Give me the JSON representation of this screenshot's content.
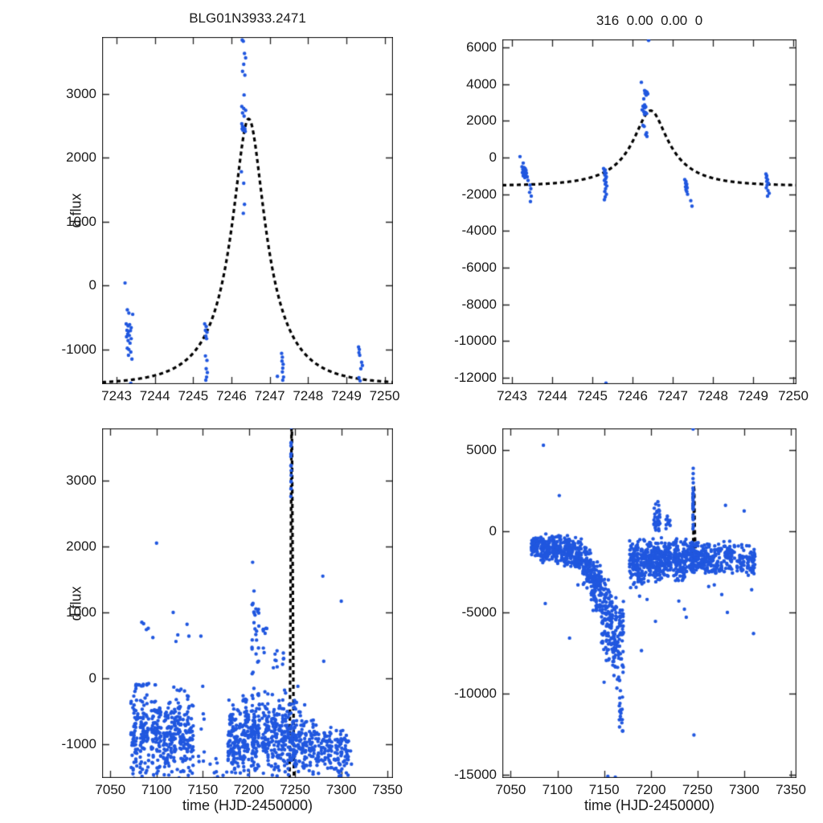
{
  "figure": {
    "background": "#ffffff",
    "point_color": "#2057df",
    "curve_color": "#000000",
    "axis_color": "#262626",
    "marker_radius": 2.2,
    "curve_dash": [
      5,
      4
    ],
    "curve_width": 3.2
  },
  "chart_data": [
    {
      "name": "top-left",
      "type": "scatter",
      "title": "BLG01N3933.2471",
      "ylabel": "d flux",
      "xlim": [
        7242.62,
        7250.22
      ],
      "ylim": [
        -1542,
        3887
      ],
      "xticks": [
        7243,
        7244,
        7245,
        7246,
        7247,
        7248,
        7249,
        7250
      ],
      "yticks": [
        -1000,
        0,
        1000,
        2000,
        3000
      ],
      "model_curve": {
        "type": "paczynski",
        "t0": 7246.45,
        "u0": 0.3,
        "tE": 1.4,
        "fs": 1700,
        "fb": -1550,
        "trange": [
          7242.62,
          7250.22
        ]
      },
      "points": [
        [
          7243.22,
          40
        ],
        [
          7243.28,
          -380
        ],
        [
          7243.32,
          -430
        ],
        [
          7243.42,
          -450
        ],
        [
          7243.25,
          -600
        ],
        [
          7243.3,
          -630
        ],
        [
          7243.34,
          -610
        ],
        [
          7243.38,
          -660
        ],
        [
          7243.27,
          -700
        ],
        [
          7243.31,
          -720
        ],
        [
          7243.36,
          -705
        ],
        [
          7243.29,
          -760
        ],
        [
          7243.33,
          -780
        ],
        [
          7243.26,
          -800
        ],
        [
          7243.38,
          -830
        ],
        [
          7243.3,
          -860
        ],
        [
          7243.35,
          -900
        ],
        [
          7243.28,
          -980
        ],
        [
          7243.32,
          -1000
        ],
        [
          7243.37,
          -1040
        ],
        [
          7243.31,
          -1090
        ],
        [
          7243.4,
          -1150
        ],
        [
          7243.37,
          -1530
        ],
        [
          7245.3,
          -600
        ],
        [
          7245.34,
          -640
        ],
        [
          7245.32,
          -700
        ],
        [
          7245.36,
          -730
        ],
        [
          7245.33,
          -790
        ],
        [
          7245.35,
          -830
        ],
        [
          7245.32,
          -1100
        ],
        [
          7245.36,
          -1170
        ],
        [
          7245.34,
          -1300
        ],
        [
          7245.37,
          -1360
        ],
        [
          7245.35,
          -1430
        ],
        [
          7245.33,
          -1480
        ],
        [
          7246.28,
          3840
        ],
        [
          7246.31,
          3820
        ],
        [
          7246.34,
          3630
        ],
        [
          7246.37,
          3560
        ],
        [
          7246.32,
          3460
        ],
        [
          7246.29,
          3350
        ],
        [
          7246.35,
          3290
        ],
        [
          7246.33,
          2980
        ],
        [
          7246.27,
          2800
        ],
        [
          7246.32,
          2770
        ],
        [
          7246.37,
          2740
        ],
        [
          7246.29,
          2700
        ],
        [
          7246.33,
          2650
        ],
        [
          7246.27,
          2530
        ],
        [
          7246.29,
          2490
        ],
        [
          7246.32,
          2470
        ],
        [
          7246.35,
          2450
        ],
        [
          7246.3,
          2430
        ],
        [
          7246.36,
          2410
        ],
        [
          7246.28,
          2450
        ],
        [
          7246.26,
          1780
        ],
        [
          7246.32,
          1600
        ],
        [
          7246.34,
          1270
        ],
        [
          7246.31,
          1130
        ],
        [
          7247.31,
          -1060
        ],
        [
          7247.33,
          -1120
        ],
        [
          7247.32,
          -1180
        ],
        [
          7247.35,
          -1230
        ],
        [
          7247.34,
          -1290
        ],
        [
          7247.33,
          -1350
        ],
        [
          7247.36,
          -1430
        ],
        [
          7247.34,
          -1480
        ],
        [
          7247.2,
          -1420
        ],
        [
          7249.32,
          -960
        ],
        [
          7249.34,
          -1000
        ],
        [
          7249.33,
          -1050
        ],
        [
          7249.35,
          -1090
        ],
        [
          7249.4,
          -1200
        ],
        [
          7249.42,
          -1250
        ],
        [
          7249.38,
          -1300
        ],
        [
          7249.33,
          -1440
        ],
        [
          7249.36,
          -1490
        ]
      ]
    },
    {
      "name": "top-right",
      "type": "scatter",
      "title": "316  0.00  0.00  0",
      "xlim": [
        7242.76,
        7250.08
      ],
      "ylim": [
        -12355,
        6440
      ],
      "xticks": [
        7243,
        7244,
        7245,
        7246,
        7247,
        7248,
        7249,
        7250
      ],
      "yticks": [
        -12000,
        -10000,
        -8000,
        -6000,
        -4000,
        -2000,
        0,
        2000,
        4000,
        6000
      ],
      "model_curve": {
        "type": "paczynski",
        "t0": 7246.45,
        "u0": 0.3,
        "tE": 1.4,
        "fs": 1680,
        "fb": -1550,
        "trange": [
          7242.76,
          7250.08
        ]
      },
      "points": [
        [
          7243.2,
          50
        ],
        [
          7243.28,
          -300
        ],
        [
          7243.25,
          -500
        ],
        [
          7243.3,
          -550
        ],
        [
          7243.33,
          -600
        ],
        [
          7243.27,
          -650
        ],
        [
          7243.31,
          -680
        ],
        [
          7243.35,
          -700
        ],
        [
          7243.29,
          -750
        ],
        [
          7243.33,
          -780
        ],
        [
          7243.26,
          -820
        ],
        [
          7243.36,
          -850
        ],
        [
          7243.3,
          -900
        ],
        [
          7243.34,
          -950
        ],
        [
          7243.28,
          -1000
        ],
        [
          7243.38,
          -1050
        ],
        [
          7243.32,
          -1100
        ],
        [
          7243.4,
          -1250
        ],
        [
          7243.45,
          -1500
        ],
        [
          7243.47,
          -1700
        ],
        [
          7243.44,
          -1900
        ],
        [
          7243.48,
          -2100
        ],
        [
          7243.46,
          -2400
        ],
        [
          7245.28,
          -600
        ],
        [
          7245.32,
          -680
        ],
        [
          7245.3,
          -780
        ],
        [
          7245.34,
          -850
        ],
        [
          7245.31,
          -950
        ],
        [
          7245.35,
          -1050
        ],
        [
          7245.33,
          -1150
        ],
        [
          7245.3,
          -1250
        ],
        [
          7245.34,
          -1350
        ],
        [
          7245.32,
          -1450
        ],
        [
          7245.36,
          -1550
        ],
        [
          7245.33,
          -1700
        ],
        [
          7245.31,
          -1850
        ],
        [
          7245.35,
          -2000
        ],
        [
          7245.32,
          -2150
        ],
        [
          7245.3,
          -2300
        ],
        [
          7245.34,
          -12300
        ],
        [
          7246.22,
          4100
        ],
        [
          7246.3,
          3650
        ],
        [
          7246.33,
          3600
        ],
        [
          7246.36,
          3560
        ],
        [
          7246.31,
          3500
        ],
        [
          7246.38,
          3470
        ],
        [
          7246.34,
          3400
        ],
        [
          7246.28,
          3200
        ],
        [
          7246.3,
          2870
        ],
        [
          7246.26,
          2800
        ],
        [
          7246.33,
          2760
        ],
        [
          7246.3,
          2700
        ],
        [
          7246.24,
          2600
        ],
        [
          7246.28,
          2500
        ],
        [
          7246.32,
          2460
        ],
        [
          7246.35,
          2400
        ],
        [
          7246.3,
          2350
        ],
        [
          7246.26,
          1750
        ],
        [
          7246.29,
          1700
        ],
        [
          7246.35,
          1350
        ],
        [
          7246.33,
          1250
        ],
        [
          7246.36,
          1150
        ],
        [
          7246.4,
          6380
        ],
        [
          7247.3,
          -1200
        ],
        [
          7247.33,
          -1300
        ],
        [
          7247.32,
          -1400
        ],
        [
          7247.35,
          -1450
        ],
        [
          7247.34,
          -1550
        ],
        [
          7247.32,
          -1600
        ],
        [
          7247.36,
          -1650
        ],
        [
          7247.33,
          -1750
        ],
        [
          7247.35,
          -1850
        ],
        [
          7247.37,
          -2000
        ],
        [
          7247.45,
          -2350
        ],
        [
          7247.48,
          -2650
        ],
        [
          7249.32,
          -900
        ],
        [
          7249.34,
          -1000
        ],
        [
          7249.33,
          -1100
        ],
        [
          7249.36,
          -1200
        ],
        [
          7249.34,
          -1300
        ],
        [
          7249.38,
          -1400
        ],
        [
          7249.35,
          -1500
        ],
        [
          7249.33,
          -1650
        ],
        [
          7249.37,
          -1800
        ],
        [
          7249.4,
          -1950
        ],
        [
          7249.36,
          -2100
        ]
      ]
    },
    {
      "name": "bottom-left",
      "type": "scatter",
      "xlabel": "time (HJD-2450000)",
      "ylabel": "d flux",
      "xlim": [
        7041,
        7356
      ],
      "ylim": [
        -1510,
        3790
      ],
      "xticks": [
        7050,
        7100,
        7150,
        7200,
        7250,
        7300,
        7350
      ],
      "yticks": [
        -1000,
        0,
        1000,
        2000,
        3000
      ],
      "model_curve": {
        "type": "polyline",
        "pts": [
          [
            7244.0,
            -1520
          ],
          [
            7246.15,
            3850
          ],
          [
            7246.5,
            3850
          ],
          [
            7248.7,
            -1520
          ]
        ]
      },
      "seed": 11,
      "clusters": [
        [
          7072,
          7080,
          55,
          -1600,
          -80
        ],
        [
          7075,
          7100,
          14,
          -120,
          -70
        ],
        [
          7082,
          7092,
          75,
          -1600,
          -60
        ],
        [
          7094,
          7105,
          85,
          -1620,
          -80
        ],
        [
          7107,
          7117,
          75,
          -1650,
          -250
        ],
        [
          7118,
          7127,
          70,
          -1550,
          -60
        ],
        [
          7128,
          7140,
          80,
          -1650,
          -150
        ],
        [
          7144,
          7152,
          6,
          -1350,
          -100
        ],
        [
          7160,
          7166,
          5,
          -1620,
          -1150
        ],
        [
          7177,
          7191,
          110,
          -1650,
          -200
        ],
        [
          7192,
          7200,
          70,
          -1600,
          -150
        ],
        [
          7202,
          7212,
          90,
          -1550,
          -80
        ],
        [
          7203,
          7211,
          26,
          -100,
          1450
        ],
        [
          7214,
          7222,
          60,
          -1500,
          -150
        ],
        [
          7215,
          7220,
          8,
          200,
          1050
        ],
        [
          7224,
          7240,
          120,
          -1650,
          -120
        ],
        [
          7226,
          7238,
          10,
          100,
          430
        ],
        [
          7241,
          7252,
          90,
          -1600,
          -250
        ],
        [
          7245.3,
          7245.9,
          16,
          2380,
          3860
        ],
        [
          7253,
          7263,
          60,
          -1600,
          -350
        ],
        [
          7265,
          7276,
          55,
          -1550,
          -550
        ],
        [
          7278,
          7290,
          50,
          -1550,
          -650
        ],
        [
          7292,
          7308,
          70,
          -1600,
          -700
        ]
      ],
      "outliers": [
        [
          7100,
          2050
        ],
        [
          7118,
          1000
        ],
        [
          7133,
          820
        ],
        [
          7135,
          640
        ],
        [
          7084,
          850
        ],
        [
          7086,
          830
        ],
        [
          7089,
          740
        ],
        [
          7091,
          760
        ],
        [
          7096,
          620
        ],
        [
          7121,
          560
        ],
        [
          7123,
          660
        ],
        [
          7148,
          640
        ],
        [
          7150,
          -120
        ],
        [
          7204,
          1760
        ],
        [
          7280,
          1550
        ],
        [
          7281,
          260
        ],
        [
          7300,
          1170
        ],
        [
          7253,
          -120
        ],
        [
          7146,
          -1260
        ],
        [
          7158,
          -1300
        ],
        [
          7166,
          -1490
        ],
        [
          7172,
          -1470
        ],
        [
          7176,
          -1420
        ],
        [
          7310,
          -1100
        ],
        [
          7311,
          -1300
        ]
      ]
    },
    {
      "name": "bottom-right",
      "type": "scatter",
      "xlabel": "time (HJD-2450000)",
      "xlim": [
        7041,
        7356
      ],
      "ylim": [
        -15200,
        6340
      ],
      "xticks": [
        7050,
        7100,
        7150,
        7200,
        7250,
        7300,
        7350
      ],
      "yticks": [
        -15000,
        -10000,
        -5000,
        0,
        5000
      ],
      "model_curve": {
        "type": "paczynski",
        "t0": 7246.45,
        "u0": 0.3,
        "tE": 1.4,
        "fs": 1700,
        "fb": -1550,
        "trange": [
          7242.6,
          7249.9
        ]
      },
      "seed": 23,
      "clusters": [
        [
          7072,
          7080,
          60,
          -1700,
          -250
        ],
        [
          7082,
          7092,
          90,
          -2000,
          -100
        ],
        [
          7094,
          7105,
          95,
          -2100,
          -150
        ],
        [
          7107,
          7117,
          85,
          -2300,
          -200
        ],
        [
          7118,
          7126,
          70,
          -2600,
          -300
        ],
        [
          7127,
          7136,
          70,
          -3500,
          -700
        ],
        [
          7136,
          7147,
          110,
          -5000,
          -1400
        ],
        [
          7147,
          7159,
          120,
          -8200,
          -2600
        ],
        [
          7159,
          7171,
          100,
          -9800,
          -3600
        ],
        [
          7166,
          7170,
          14,
          -13000,
          -9600
        ],
        [
          7177,
          7191,
          120,
          -3600,
          -400
        ],
        [
          7192,
          7201,
          80,
          -3300,
          -400
        ],
        [
          7202,
          7212,
          110,
          -3300,
          -300
        ],
        [
          7203,
          7210,
          30,
          -250,
          2000
        ],
        [
          7213,
          7222,
          70,
          -3000,
          -500
        ],
        [
          7215,
          7221,
          10,
          -300,
          1250
        ],
        [
          7224,
          7240,
          130,
          -3200,
          -300
        ],
        [
          7241,
          7252,
          90,
          -2600,
          -500
        ],
        [
          7245.0,
          7245.6,
          30,
          -400,
          4100
        ],
        [
          7253,
          7263,
          70,
          -2800,
          -600
        ],
        [
          7264,
          7276,
          65,
          -2900,
          -700
        ],
        [
          7278,
          7290,
          60,
          -2700,
          -500
        ],
        [
          7292,
          7312,
          80,
          -2900,
          -700
        ]
      ],
      "outliers": [
        [
          7085,
          5300
        ],
        [
          7102,
          2200
        ],
        [
          7245.3,
          6300
        ],
        [
          7246.2,
          -12550
        ],
        [
          7154,
          -15100
        ],
        [
          7162,
          -15150
        ],
        [
          7087,
          -4450
        ],
        [
          7113,
          -6580
        ],
        [
          7122,
          -3300
        ],
        [
          7150,
          -9300
        ],
        [
          7190,
          -7350
        ],
        [
          7205,
          -5550
        ],
        [
          7230,
          -4300
        ],
        [
          7236,
          -4800
        ],
        [
          7238,
          -5300
        ],
        [
          7282,
          -5000
        ],
        [
          7280,
          1600
        ],
        [
          7300,
          1250
        ],
        [
          7308,
          -3600
        ],
        [
          7310,
          -6300
        ],
        [
          7276,
          -3900
        ],
        [
          7262,
          -3400
        ],
        [
          7268,
          -3300
        ],
        [
          7196,
          -4200
        ],
        [
          7188,
          -4000
        ],
        [
          7168,
          -11200
        ],
        [
          7169,
          -11800
        ],
        [
          7170,
          -12300
        ],
        [
          7167,
          -10600
        ]
      ]
    }
  ]
}
